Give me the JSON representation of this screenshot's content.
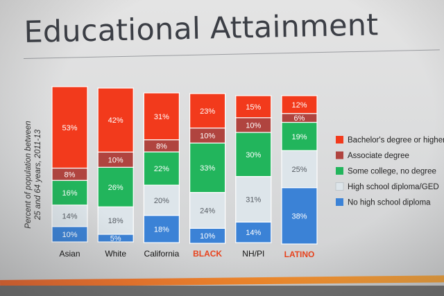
{
  "title": "Educational Attainment",
  "chart_data": {
    "type": "bar",
    "stacked": true,
    "ylabel": "Percent of population between 25 and 64 years, 2011-13",
    "ylabel_lines": [
      "Percent of population between",
      "25 and 64 years, 2011-13"
    ],
    "ylim": [
      0,
      100
    ],
    "grid": false,
    "legend_position": "right",
    "categories": [
      "Asian",
      "White",
      "California",
      "BLACK",
      "NH/PI",
      "LATINO"
    ],
    "category_colors": [
      "#111111",
      "#111111",
      "#111111",
      "#e8421c",
      "#111111",
      "#e8421c"
    ],
    "series": [
      {
        "name": "No high school diploma",
        "color": "#3b82d6",
        "values": [
          10,
          5,
          18,
          10,
          14,
          38
        ]
      },
      {
        "name": "High school diploma/GED",
        "color": "#dde5ea",
        "values": [
          14,
          18,
          20,
          24,
          31,
          25
        ]
      },
      {
        "name": "Some college, no degree",
        "color": "#22b55c",
        "values": [
          16,
          26,
          22,
          33,
          30,
          19
        ]
      },
      {
        "name": "Associate degree",
        "color": "#b0443f",
        "values": [
          8,
          10,
          8,
          10,
          10,
          6
        ]
      },
      {
        "name": "Bachelor's degree or higher",
        "color": "#f23a1c",
        "values": [
          53,
          42,
          31,
          23,
          15,
          12
        ]
      }
    ],
    "legend_order": [
      "Bachelor's degree or higher",
      "Associate degree",
      "Some college, no degree",
      "High school diploma/GED",
      "No high school diploma"
    ]
  }
}
